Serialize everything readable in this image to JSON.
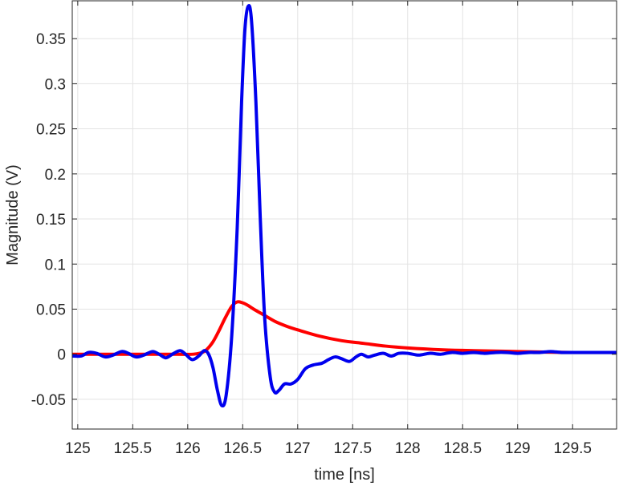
{
  "chart_data": {
    "type": "line",
    "title": "",
    "xlabel": "time [ns]",
    "ylabel": "Magnitude (V)",
    "xlim": [
      124.95,
      129.9
    ],
    "ylim": [
      -0.083,
      0.392
    ],
    "grid": true,
    "x_ticks": [
      125,
      125.5,
      126,
      126.5,
      127,
      127.5,
      128,
      128.5,
      129,
      129.5
    ],
    "x_tick_labels": [
      "125",
      "125.5",
      "126",
      "126.5",
      "127",
      "127.5",
      "128",
      "128.5",
      "129",
      "129.5"
    ],
    "y_ticks": [
      -0.05,
      0,
      0.05,
      0.1,
      0.15,
      0.2,
      0.25,
      0.3,
      0.35
    ],
    "y_tick_labels": [
      "-0.05",
      "0",
      "0.05",
      "0.1",
      "0.15",
      "0.2",
      "0.25",
      "0.3",
      "0.35"
    ],
    "series": [
      {
        "color": "#ff0000",
        "points": [
          [
            124.95,
            0.0
          ],
          [
            125.5,
            0.0
          ],
          [
            125.9,
            0.0
          ],
          [
            126.05,
            0.0
          ],
          [
            126.15,
            0.003
          ],
          [
            126.22,
            0.012
          ],
          [
            126.28,
            0.025
          ],
          [
            126.34,
            0.04
          ],
          [
            126.4,
            0.053
          ],
          [
            126.45,
            0.058
          ],
          [
            126.5,
            0.057
          ],
          [
            126.55,
            0.054
          ],
          [
            126.6,
            0.05
          ],
          [
            126.7,
            0.043
          ],
          [
            126.8,
            0.036
          ],
          [
            126.9,
            0.031
          ],
          [
            127.0,
            0.027
          ],
          [
            127.2,
            0.02
          ],
          [
            127.4,
            0.015
          ],
          [
            127.6,
            0.012
          ],
          [
            127.8,
            0.009
          ],
          [
            128.0,
            0.007
          ],
          [
            128.3,
            0.005
          ],
          [
            128.6,
            0.004
          ],
          [
            129.0,
            0.003
          ],
          [
            129.5,
            0.002
          ],
          [
            129.9,
            0.002
          ]
        ]
      },
      {
        "color": "#0000ee",
        "points": [
          [
            124.95,
            -0.002
          ],
          [
            125.03,
            -0.002
          ],
          [
            125.1,
            0.002
          ],
          [
            125.17,
            0.001
          ],
          [
            125.25,
            -0.003
          ],
          [
            125.32,
            -0.001
          ],
          [
            125.4,
            0.003
          ],
          [
            125.46,
            0.001
          ],
          [
            125.53,
            -0.003
          ],
          [
            125.6,
            -0.001
          ],
          [
            125.68,
            0.003
          ],
          [
            125.74,
            0.0
          ],
          [
            125.8,
            -0.004
          ],
          [
            125.86,
            0.0
          ],
          [
            125.93,
            0.004
          ],
          [
            125.98,
            0.0
          ],
          [
            126.04,
            -0.006
          ],
          [
            126.1,
            -0.002
          ],
          [
            126.15,
            0.004
          ],
          [
            126.19,
            0.0
          ],
          [
            126.23,
            -0.015
          ],
          [
            126.27,
            -0.04
          ],
          [
            126.31,
            -0.057
          ],
          [
            126.35,
            -0.045
          ],
          [
            126.4,
            0.02
          ],
          [
            126.45,
            0.14
          ],
          [
            126.49,
            0.28
          ],
          [
            126.52,
            0.36
          ],
          [
            126.55,
            0.386
          ],
          [
            126.58,
            0.37
          ],
          [
            126.62,
            0.28
          ],
          [
            126.66,
            0.15
          ],
          [
            126.7,
            0.04
          ],
          [
            126.75,
            -0.025
          ],
          [
            126.79,
            -0.042
          ],
          [
            126.83,
            -0.04
          ],
          [
            126.88,
            -0.033
          ],
          [
            126.94,
            -0.033
          ],
          [
            127.0,
            -0.028
          ],
          [
            127.07,
            -0.016
          ],
          [
            127.14,
            -0.012
          ],
          [
            127.22,
            -0.01
          ],
          [
            127.28,
            -0.006
          ],
          [
            127.34,
            -0.003
          ],
          [
            127.4,
            -0.005
          ],
          [
            127.47,
            -0.008
          ],
          [
            127.53,
            -0.003
          ],
          [
            127.58,
            0.0
          ],
          [
            127.64,
            -0.003
          ],
          [
            127.7,
            -0.001
          ],
          [
            127.78,
            0.001
          ],
          [
            127.85,
            -0.002
          ],
          [
            127.92,
            0.001
          ],
          [
            128.0,
            0.001
          ],
          [
            128.1,
            -0.001
          ],
          [
            128.2,
            0.001
          ],
          [
            128.3,
            0.0
          ],
          [
            128.4,
            0.002
          ],
          [
            128.5,
            0.001
          ],
          [
            128.6,
            0.002
          ],
          [
            128.7,
            0.001
          ],
          [
            128.8,
            0.002
          ],
          [
            128.9,
            0.002
          ],
          [
            129.0,
            0.001
          ],
          [
            129.1,
            0.002
          ],
          [
            129.2,
            0.002
          ],
          [
            129.3,
            0.003
          ],
          [
            129.4,
            0.002
          ],
          [
            129.5,
            0.002
          ],
          [
            129.6,
            0.002
          ],
          [
            129.7,
            0.002
          ],
          [
            129.8,
            0.002
          ],
          [
            129.9,
            0.002
          ]
        ]
      }
    ]
  }
}
